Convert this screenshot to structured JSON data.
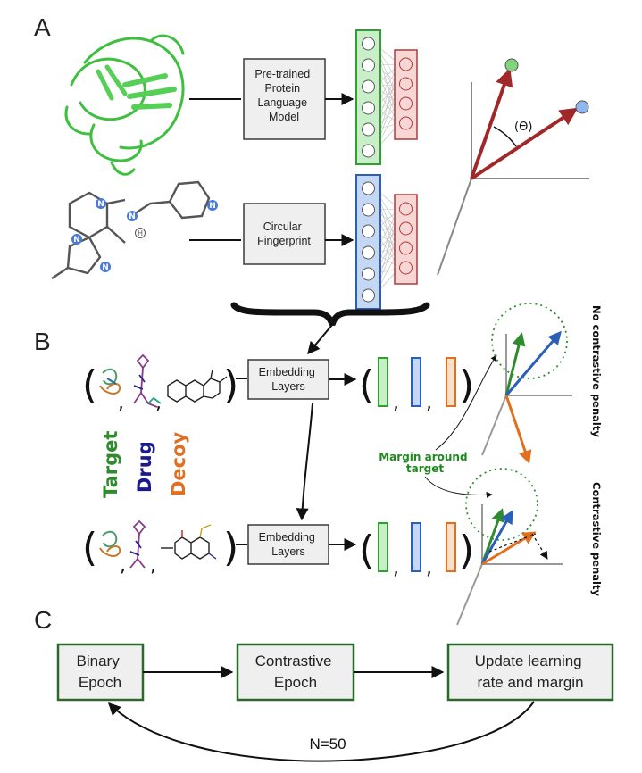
{
  "panels": {
    "a": "A",
    "b": "B",
    "c": "C"
  },
  "panel_a": {
    "protein_model_lines": [
      "Pre-trained",
      "Protein",
      "Language",
      "Model"
    ],
    "fingerprint_lines": [
      "Circular",
      "Fingerprint"
    ],
    "angle_symbol": "Θ",
    "h_label": "H",
    "n_label": "N"
  },
  "panel_b": {
    "embedding_lines": [
      "Embedding",
      "Layers"
    ],
    "legend": {
      "target": "Target",
      "drug": "Drug",
      "decoy": "Decoy"
    },
    "margin_lines": [
      "Margin around",
      "target"
    ],
    "no_penalty": "No contrastive penalty",
    "penalty": "Contrastive penalty",
    "paren_open": "(",
    "paren_close": ")",
    "comma": ","
  },
  "panel_c": {
    "binary_lines": [
      "Binary",
      "Epoch"
    ],
    "contrastive_lines": [
      "Contrastive",
      "Epoch"
    ],
    "update_lines": [
      "Update learning",
      "rate and margin"
    ],
    "loop_label": "N=50"
  },
  "colors": {
    "target": "#2e8b2e",
    "drug": "#1a1a8c",
    "decoy": "#e07020",
    "green_fill": "#c8efc8",
    "green_stroke": "#2ea02e",
    "blue_fill": "#c4d8f6",
    "blue_stroke": "#2c5fb8",
    "red_fill": "#f7d6d6",
    "red_stroke": "#b03a3a",
    "vec_red": "#a02828",
    "box_fill": "#efefef",
    "box_stroke": "#3a3a3a",
    "c_box_stroke": "#2a6a2a"
  }
}
